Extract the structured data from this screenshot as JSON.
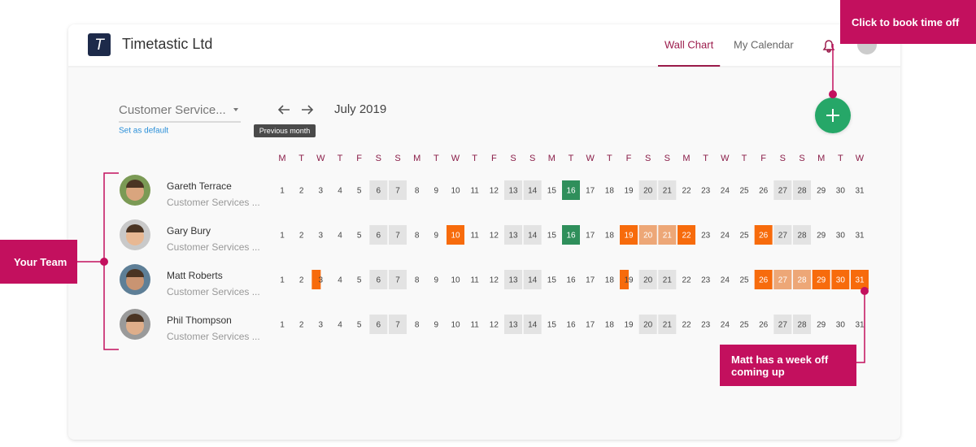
{
  "app": {
    "logo": "T",
    "name": "Timetastic Ltd"
  },
  "nav": {
    "tabs": [
      "Wall Chart",
      "My Calendar"
    ],
    "active": 0
  },
  "toolbar": {
    "team_select": "Customer Service...",
    "set_default": "Set as default",
    "tooltip": "Previous month"
  },
  "calendar": {
    "month": "July 2019",
    "weekdays": [
      "M",
      "T",
      "W",
      "T",
      "F",
      "S",
      "S",
      "M",
      "T",
      "W",
      "T",
      "F",
      "S",
      "S",
      "M",
      "T",
      "W",
      "T",
      "F",
      "S",
      "S",
      "M",
      "T",
      "W",
      "T",
      "F",
      "S",
      "S",
      "M",
      "T",
      "W"
    ],
    "days": [
      1,
      2,
      3,
      4,
      5,
      6,
      7,
      8,
      9,
      10,
      11,
      12,
      13,
      14,
      15,
      16,
      17,
      18,
      19,
      20,
      21,
      22,
      23,
      24,
      25,
      26,
      27,
      28,
      29,
      30,
      31
    ],
    "weekends": [
      6,
      7,
      13,
      14,
      20,
      21,
      27,
      28
    ]
  },
  "leave_colors": {
    "holiday": "#f76b0c",
    "other": "#2f8f5b"
  },
  "people": [
    {
      "name": "Gareth Terrace",
      "team": "Customer Services ...",
      "bookings": [
        {
          "day": 16,
          "leave": "other"
        }
      ]
    },
    {
      "name": "Gary Bury",
      "team": "Customer Services ...",
      "bookings": [
        {
          "day": 10,
          "leave": "holiday"
        },
        {
          "day": 16,
          "leave": "other"
        },
        {
          "day": 19,
          "leave": "holiday"
        },
        {
          "day": 20,
          "leave": "holiday"
        },
        {
          "day": 21,
          "leave": "holiday"
        },
        {
          "day": 22,
          "leave": "holiday"
        },
        {
          "day": 26,
          "leave": "holiday"
        }
      ]
    },
    {
      "name": "Matt Roberts",
      "team": "Customer Services ...",
      "bookings": [
        {
          "day": 3,
          "leave": "holiday",
          "half": true
        },
        {
          "day": 19,
          "leave": "holiday",
          "half": true
        },
        {
          "day": 26,
          "leave": "holiday"
        },
        {
          "day": 27,
          "leave": "holiday"
        },
        {
          "day": 28,
          "leave": "holiday"
        },
        {
          "day": 29,
          "leave": "holiday"
        },
        {
          "day": 30,
          "leave": "holiday"
        },
        {
          "day": 31,
          "leave": "holiday"
        }
      ]
    },
    {
      "name": "Phil Thompson",
      "team": "Customer Services ...",
      "bookings": []
    }
  ],
  "annotations": {
    "book": "Click to book time off",
    "team": "Your Team",
    "week_off": "Matt has a week off coming up"
  }
}
